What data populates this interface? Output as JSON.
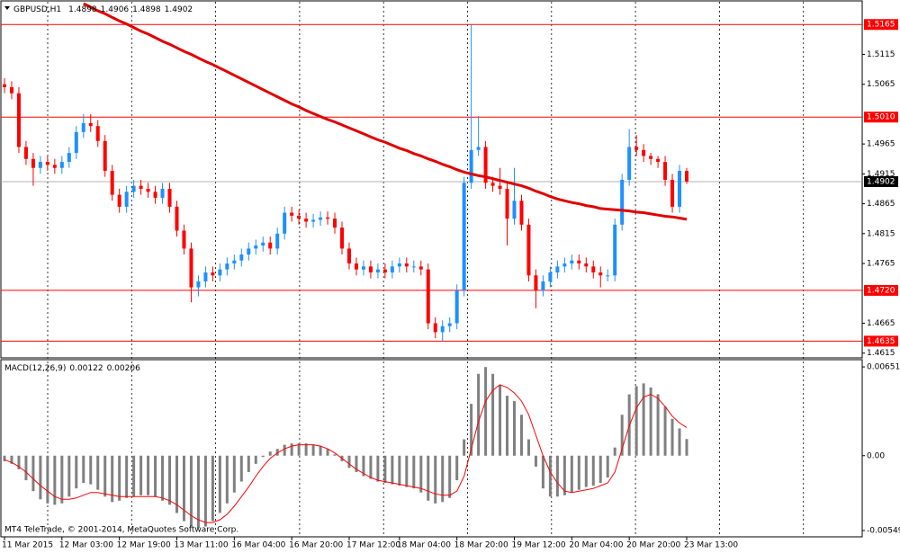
{
  "chart_data": [
    {
      "type": "candlestick",
      "title": "GBPUSD,H1",
      "title_values": [
        1.4898,
        1.4906,
        1.4898,
        1.4902
      ],
      "categories": [
        "11 Mar 2015",
        null,
        null,
        null,
        null,
        null,
        null,
        null,
        "12 Mar 03:00",
        null,
        null,
        null,
        null,
        null,
        null,
        null,
        "12 Mar 19:00",
        null,
        null,
        null,
        null,
        null,
        null,
        null,
        "13 Mar 11:00",
        null,
        null,
        null,
        null,
        null,
        null,
        null,
        "16 Mar 04:00",
        null,
        null,
        null,
        null,
        null,
        null,
        null,
        "16 Mar 20:00",
        null,
        null,
        null,
        null,
        null,
        null,
        null,
        "17 Mar 12:00",
        null,
        null,
        null,
        null,
        null,
        null,
        "18 Mar 04:00",
        null,
        null,
        null,
        null,
        null,
        null,
        null,
        "18 Mar 20:00",
        null,
        null,
        null,
        null,
        null,
        null,
        null,
        "19 Mar 12:00",
        null,
        null,
        null,
        null,
        null,
        null,
        null,
        "20 Mar 04:00",
        null,
        null,
        null,
        null,
        null,
        null,
        null,
        "20 Mar 20:00",
        null,
        null,
        null,
        null,
        null,
        null,
        null,
        "23 Mar 13:00"
      ],
      "open": [
        1.5065,
        1.506,
        1.505,
        1.496,
        1.494,
        1.4925,
        1.4935,
        1.493,
        1.4925,
        1.4935,
        1.495,
        1.4985,
        1.5,
        1.4995,
        1.497,
        1.492,
        1.488,
        1.486,
        1.4885,
        1.4895,
        1.489,
        1.4885,
        1.4875,
        1.489,
        1.486,
        1.482,
        1.479,
        1.4725,
        1.4735,
        1.475,
        1.4745,
        1.4755,
        1.4765,
        1.477,
        1.478,
        1.479,
        1.4795,
        1.48,
        1.479,
        1.4815,
        1.485,
        1.4845,
        1.484,
        1.4835,
        1.4838,
        1.4842,
        1.484,
        1.4825,
        1.479,
        1.4765,
        1.4755,
        1.476,
        1.475,
        1.4755,
        1.475,
        1.476,
        1.4765,
        1.476,
        1.476,
        1.4755,
        1.4665,
        1.465,
        1.466,
        1.4665,
        1.472,
        1.49,
        1.4955,
        1.496,
        1.49,
        1.4895,
        1.489,
        1.484,
        1.487,
        1.483,
        1.4745,
        1.472,
        1.4735,
        1.475,
        1.476,
        1.4765,
        1.477,
        1.4765,
        1.476,
        1.475,
        1.4745,
        1.4745,
        1.483,
        1.4905,
        1.496,
        1.4955,
        1.4945,
        1.494,
        1.4935,
        1.4905,
        1.486,
        1.492
      ],
      "high": [
        1.5075,
        1.507,
        1.506,
        1.497,
        1.495,
        1.4945,
        1.4945,
        1.494,
        1.4945,
        1.496,
        1.4995,
        1.5015,
        1.5015,
        1.5005,
        1.498,
        1.493,
        1.489,
        1.4895,
        1.4905,
        1.4905,
        1.49,
        1.4895,
        1.49,
        1.49,
        1.487,
        1.483,
        1.48,
        1.4745,
        1.476,
        1.476,
        1.4765,
        1.4775,
        1.478,
        1.479,
        1.48,
        1.4805,
        1.481,
        1.481,
        1.4825,
        1.486,
        1.486,
        1.4855,
        1.485,
        1.4848,
        1.4852,
        1.4852,
        1.485,
        1.4835,
        1.48,
        1.4775,
        1.477,
        1.477,
        1.4765,
        1.4765,
        1.477,
        1.4775,
        1.4775,
        1.477,
        1.477,
        1.4765,
        1.4675,
        1.467,
        1.4675,
        1.473,
        1.491,
        1.5165,
        1.5012,
        1.497,
        1.491,
        1.4925,
        1.49,
        1.4925,
        1.488,
        1.484,
        1.4755,
        1.4745,
        1.476,
        1.477,
        1.4775,
        1.478,
        1.478,
        1.4775,
        1.477,
        1.476,
        1.4755,
        1.484,
        1.4915,
        1.499,
        1.498,
        1.4965,
        1.495,
        1.4945,
        1.4945,
        1.4915,
        1.493,
        1.4925
      ],
      "low": [
        1.505,
        1.504,
        1.495,
        1.493,
        1.4895,
        1.4915,
        1.492,
        1.4915,
        1.4915,
        1.4925,
        1.494,
        1.4975,
        1.4985,
        1.496,
        1.491,
        1.487,
        1.485,
        1.485,
        1.4875,
        1.488,
        1.4875,
        1.4865,
        1.4865,
        1.485,
        1.481,
        1.478,
        1.47,
        1.471,
        1.4725,
        1.4735,
        1.4735,
        1.4745,
        1.4755,
        1.476,
        1.477,
        1.478,
        1.4785,
        1.478,
        1.478,
        1.4805,
        1.4835,
        1.483,
        1.4825,
        1.4825,
        1.4828,
        1.483,
        1.4815,
        1.478,
        1.4755,
        1.4745,
        1.4745,
        1.474,
        1.474,
        1.474,
        1.474,
        1.475,
        1.475,
        1.475,
        1.4745,
        1.4655,
        1.464,
        1.4635,
        1.465,
        1.4655,
        1.471,
        1.489,
        1.4945,
        1.489,
        1.4885,
        1.488,
        1.4795,
        1.483,
        1.482,
        1.4735,
        1.469,
        1.471,
        1.4725,
        1.474,
        1.475,
        1.4755,
        1.4755,
        1.475,
        1.474,
        1.4725,
        1.4735,
        1.4735,
        1.482,
        1.4895,
        1.4945,
        1.4935,
        1.493,
        1.4925,
        1.4895,
        1.485,
        1.485,
        1.4898
      ],
      "close": [
        1.506,
        1.505,
        1.496,
        1.494,
        1.4925,
        1.4935,
        1.493,
        1.4925,
        1.4935,
        1.495,
        1.4985,
        1.5,
        1.4995,
        1.497,
        1.492,
        1.488,
        1.486,
        1.4885,
        1.4895,
        1.489,
        1.4885,
        1.4875,
        1.489,
        1.486,
        1.482,
        1.479,
        1.4725,
        1.4735,
        1.475,
        1.4745,
        1.4755,
        1.4765,
        1.477,
        1.478,
        1.479,
        1.4795,
        1.48,
        1.479,
        1.4815,
        1.485,
        1.4845,
        1.484,
        1.4835,
        1.4838,
        1.4842,
        1.484,
        1.4825,
        1.479,
        1.4765,
        1.4755,
        1.476,
        1.475,
        1.4755,
        1.475,
        1.476,
        1.4765,
        1.476,
        1.476,
        1.4755,
        1.4665,
        1.465,
        1.466,
        1.4665,
        1.472,
        1.49,
        1.4955,
        1.496,
        1.49,
        1.4895,
        1.489,
        1.484,
        1.487,
        1.483,
        1.4745,
        1.472,
        1.4735,
        1.475,
        1.476,
        1.4765,
        1.477,
        1.4765,
        1.476,
        1.475,
        1.4745,
        1.4745,
        1.483,
        1.4905,
        1.496,
        1.4955,
        1.4945,
        1.494,
        1.4935,
        1.4905,
        1.486,
        1.492,
        1.4902
      ],
      "up_color": "#1e90ff",
      "down_color": "#ff0000",
      "moving_average": {
        "color": "#e00000",
        "values": [
          null,
          null,
          null,
          null,
          null,
          null,
          null,
          null,
          null,
          null,
          null,
          1.52,
          1.5194,
          1.5188,
          1.5183,
          1.5177,
          1.5171,
          1.5166,
          1.516,
          1.5154,
          1.5149,
          1.5143,
          1.5137,
          1.5132,
          1.5126,
          1.512,
          1.5115,
          1.5109,
          1.5103,
          1.5098,
          1.5092,
          1.5086,
          1.508,
          1.5074,
          1.5068,
          1.5062,
          1.5056,
          1.505,
          1.5044,
          1.5038,
          1.5032,
          1.5027,
          1.5021,
          1.5016,
          1.5011,
          1.5006,
          1.5002,
          1.4997,
          1.4992,
          1.4987,
          1.4982,
          1.4977,
          1.4972,
          1.4968,
          1.4963,
          1.4958,
          1.4954,
          1.4949,
          1.4945,
          1.494,
          1.4936,
          1.4931,
          1.4927,
          1.4922,
          1.4918,
          1.4915,
          1.4912,
          1.491,
          1.4907,
          1.4904,
          1.4901,
          1.4898,
          1.4895,
          1.4891,
          1.4886,
          1.4882,
          1.4877,
          1.4873,
          1.487,
          1.4867,
          1.4865,
          1.4862,
          1.486,
          1.4857,
          1.4856,
          1.4855,
          1.4854,
          1.4853,
          1.4851,
          1.485,
          1.4848,
          1.4846,
          1.4844,
          1.4843,
          1.4841,
          1.4839
        ]
      },
      "levels": {
        "color": "#ff0000",
        "values": [
          1.5165,
          {
            "value": 1.501,
            "label": "1.5010"
          },
          {
            "value": 1.472,
            "label": "1.4720"
          },
          1.4635
        ]
      },
      "current_price": 1.4902,
      "ylim": [
        1.4607,
        1.5203
      ],
      "yticks": [
        1.5115,
        1.5065,
        1.4965,
        1.4915,
        1.4865,
        1.4815,
        1.4765,
        1.4665,
        1.4615
      ]
    },
    {
      "type": "macd",
      "title": "MACD(12,26,9)",
      "title_values": [
        0.00122,
        0.00206
      ],
      "histogram": {
        "color": "#808080",
        "values": [
          -0.0004,
          -0.0006,
          -0.001,
          -0.0018,
          -0.0026,
          -0.0032,
          -0.0035,
          -0.0036,
          -0.0035,
          -0.003,
          -0.0024,
          -0.002,
          -0.0021,
          -0.0025,
          -0.003,
          -0.0034,
          -0.0033,
          -0.0031,
          -0.003,
          -0.0029,
          -0.0029,
          -0.003,
          -0.0033,
          -0.0036,
          -0.0042,
          -0.0048,
          -0.0052,
          -0.0053,
          -0.0052,
          -0.0048,
          -0.0042,
          -0.0035,
          -0.0027,
          -0.0019,
          -0.0012,
          -0.0006,
          -0.0001,
          0.0003,
          0.0005,
          0.0008,
          0.0009,
          0.0009,
          0.0009,
          0.0008,
          0.0007,
          0.0005,
          0.0001,
          -0.0004,
          -0.0009,
          -0.0012,
          -0.0015,
          -0.0017,
          -0.0019,
          -0.002,
          -0.0021,
          -0.0022,
          -0.0023,
          -0.0024,
          -0.0027,
          -0.0033,
          -0.0035,
          -0.0034,
          -0.0031,
          -0.0018,
          0.0012,
          0.0038,
          0.006,
          0.0065,
          0.006,
          0.0052,
          0.0044,
          0.004,
          0.003,
          0.0012,
          -0.0008,
          -0.0024,
          -0.003,
          -0.003,
          -0.0029,
          -0.0027,
          -0.0025,
          -0.0023,
          -0.0022,
          -0.002,
          -0.0016,
          0.0006,
          0.003,
          0.0045,
          0.0051,
          0.0053,
          0.005,
          0.0045,
          0.0036,
          0.0027,
          0.002,
          0.00122
        ]
      },
      "signal": {
        "color": "#ff0000",
        "values": [
          -0.0003,
          -0.0005,
          -0.0008,
          -0.0012,
          -0.0017,
          -0.0022,
          -0.0026,
          -0.003,
          -0.0032,
          -0.0032,
          -0.0031,
          -0.0029,
          -0.0027,
          -0.0027,
          -0.0028,
          -0.0029,
          -0.003,
          -0.003,
          -0.003,
          -0.003,
          -0.003,
          -0.003,
          -0.0031,
          -0.0033,
          -0.0036,
          -0.004,
          -0.0044,
          -0.0047,
          -0.0049,
          -0.0049,
          -0.0047,
          -0.0043,
          -0.0037,
          -0.003,
          -0.0023,
          -0.0015,
          -0.0008,
          -0.0002,
          0.0002,
          0.0005,
          0.0007,
          0.0008,
          0.0008,
          0.0008,
          0.0007,
          0.0005,
          0.0002,
          -0.0002,
          -0.0006,
          -0.001,
          -0.0013,
          -0.0016,
          -0.0018,
          -0.0019,
          -0.002,
          -0.0021,
          -0.0022,
          -0.0023,
          -0.0024,
          -0.0026,
          -0.0028,
          -0.0029,
          -0.0029,
          -0.0026,
          -0.0015,
          0.0005,
          0.0025,
          0.004,
          0.0048,
          0.0052,
          0.005,
          0.0046,
          0.004,
          0.003,
          0.0015,
          0.0,
          -0.0012,
          -0.002,
          -0.0026,
          -0.0027,
          -0.0026,
          -0.0025,
          -0.0024,
          -0.0022,
          -0.002,
          -0.0012,
          0.0005,
          0.0022,
          0.0035,
          0.0043,
          0.0045,
          0.0042,
          0.0036,
          0.0029,
          0.0024,
          0.00206
        ]
      },
      "ylim": [
        -0.00595,
        0.00704
      ],
      "yticks": [
        0.00651,
        {
          "value": 0,
          "label": "0.00"
        },
        -0.00549
      ]
    }
  ],
  "footer": "MT4 TeleTrade, © 2001-2014, MetaQuotes Software Corp."
}
